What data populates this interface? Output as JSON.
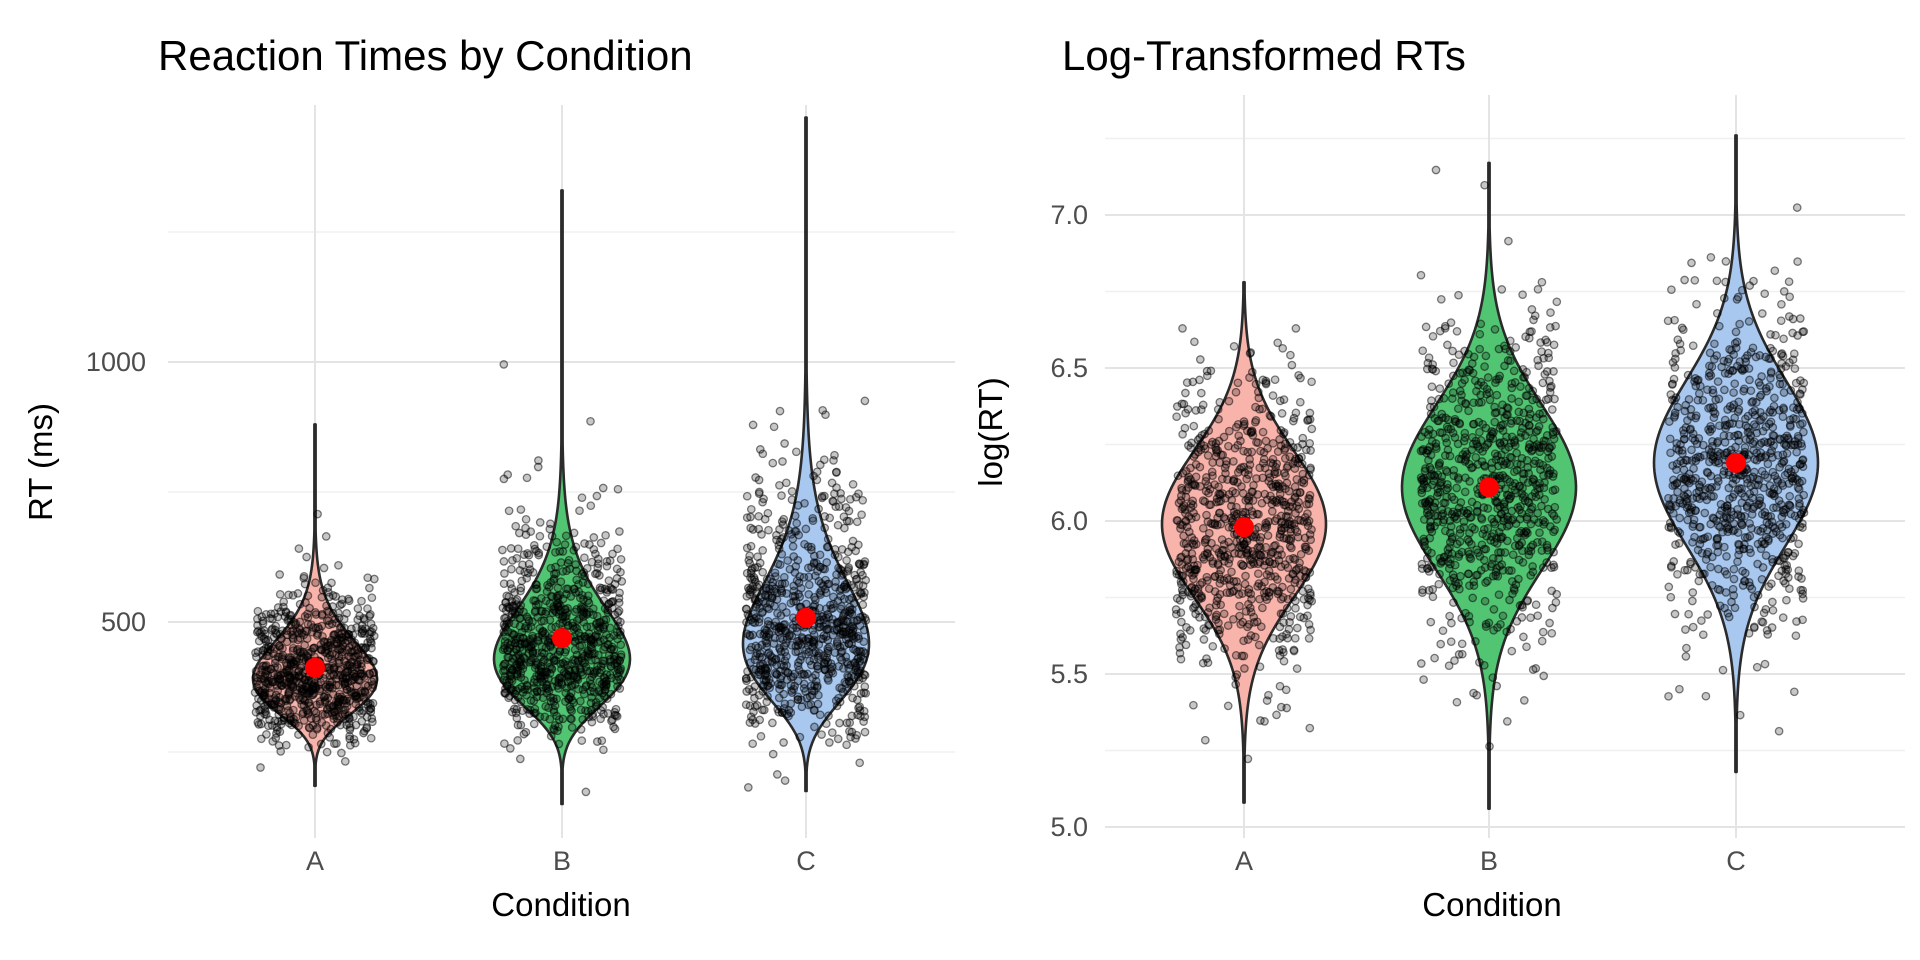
{
  "figure": {
    "background": "#FFFFFF",
    "title_color": "#000000",
    "tick_label_color": "#4D4D4D",
    "grid_major_color": "#E4E4E4",
    "grid_minor_color": "#F0F0F0",
    "violin_outline_color": "#2B2B2B",
    "jitter_point_color": "#000000",
    "mean_point_color": "#FF0000"
  },
  "chart_data": [
    {
      "type": "violin",
      "panel": "left",
      "title": "Reaction Times by Condition",
      "xlabel": "Condition",
      "ylabel": "RT (ms)",
      "categories": [
        "A",
        "B",
        "C"
      ],
      "y_axis": {
        "ticks": [
          500,
          1000
        ],
        "tick_labels": [
          "500",
          "1000"
        ],
        "minor_ticks": [
          250,
          750,
          1250
        ],
        "range_shown": [
          90,
          1495
        ]
      },
      "legend": "none",
      "grid": "on",
      "series": [
        {
          "condition": "A",
          "fill": "#F8B3AB",
          "mean": 412,
          "meanlog": 6.0,
          "sdlog": 0.18,
          "data_range": [
            185,
            880
          ],
          "n_points": 800
        },
        {
          "condition": "B",
          "fill": "#52C573",
          "mean": 469,
          "meanlog": 6.11,
          "sdlog": 0.22,
          "data_range": [
            150,
            1330
          ],
          "n_points": 800
        },
        {
          "condition": "C",
          "fill": "#A8C8F0",
          "mean": 508,
          "meanlog": 6.19,
          "sdlog": 0.25,
          "data_range": [
            175,
            1470
          ],
          "n_points": 800
        }
      ]
    },
    {
      "type": "violin",
      "panel": "right",
      "title": "Log-Transformed RTs",
      "xlabel": "Condition",
      "ylabel": "log(RT)",
      "categories": [
        "A",
        "B",
        "C"
      ],
      "y_axis": {
        "ticks": [
          5.0,
          5.5,
          6.0,
          6.5,
          7.0
        ],
        "tick_labels": [
          "5.0",
          "5.5",
          "6.0",
          "6.5",
          "7.0"
        ],
        "minor_ticks": [
          5.25,
          5.75,
          6.25,
          6.75,
          7.25
        ],
        "range_shown": [
          4.96,
          7.39
        ]
      },
      "legend": "none",
      "grid": "on",
      "series": [
        {
          "condition": "A",
          "fill": "#F8B3AB",
          "mean": 5.98,
          "meanlog": 5.99,
          "sdlog": 0.24,
          "data_range": [
            5.08,
            6.78
          ],
          "n_points": 800
        },
        {
          "condition": "B",
          "fill": "#52C573",
          "mean": 6.11,
          "meanlog": 6.11,
          "sdlog": 0.27,
          "data_range": [
            5.06,
            7.17
          ],
          "n_points": 800
        },
        {
          "condition": "C",
          "fill": "#A8C8F0",
          "mean": 6.19,
          "meanlog": 6.19,
          "sdlog": 0.27,
          "data_range": [
            5.18,
            7.26
          ],
          "n_points": 800
        }
      ]
    }
  ]
}
